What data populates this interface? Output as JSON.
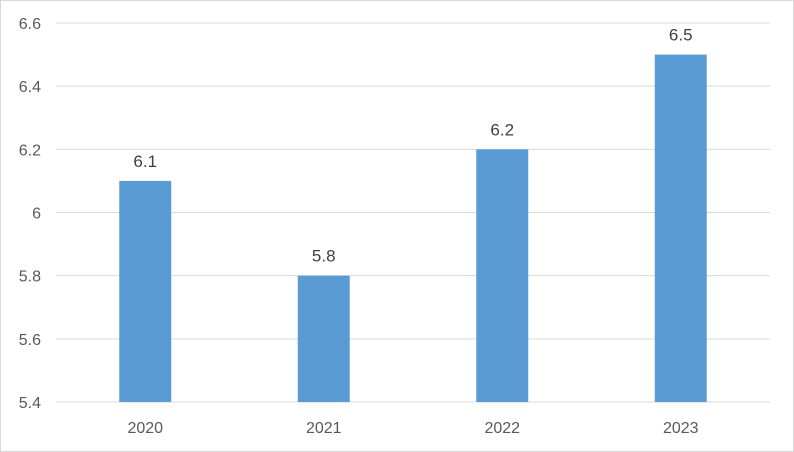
{
  "chart_data": {
    "type": "bar",
    "categories": [
      "2020",
      "2021",
      "2022",
      "2023"
    ],
    "values": [
      6.1,
      5.8,
      6.2,
      6.5
    ],
    "data_labels": [
      "6.1",
      "5.8",
      "6.2",
      "6.5"
    ],
    "y_ticks": [
      "5.4",
      "5.6",
      "5.8",
      "6",
      "6.2",
      "6.4",
      "6.6"
    ],
    "ylim": [
      5.4,
      6.6
    ],
    "title": "",
    "xlabel": "",
    "ylabel": "",
    "grid": true,
    "legend": "none",
    "colors": {
      "bar": "#5b9bd5",
      "grid": "#d9d9d9",
      "axis": "#d9d9d9"
    }
  }
}
